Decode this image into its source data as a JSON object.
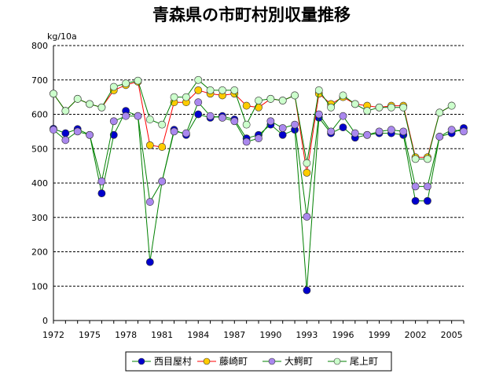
{
  "chart_data": {
    "type": "line",
    "title": "青森県の市町村別収量推移",
    "ylabel": "kg/10a",
    "ylim": [
      0,
      800
    ],
    "yticks": [
      0,
      100,
      200,
      300,
      400,
      500,
      600,
      700,
      800
    ],
    "xlim": [
      1972,
      2006
    ],
    "xticks": [
      1972,
      1975,
      1978,
      1981,
      1984,
      1987,
      1990,
      1993,
      1996,
      1999,
      2002,
      2005
    ],
    "grid": "horizontal-dashed",
    "legend_position": "bottom",
    "x": [
      1972,
      1973,
      1974,
      1975,
      1976,
      1977,
      1978,
      1979,
      1980,
      1981,
      1982,
      1983,
      1984,
      1985,
      1986,
      1987,
      1988,
      1989,
      1990,
      1991,
      1992,
      1993,
      1994,
      1995,
      1996,
      1997,
      1998,
      1999,
      2000,
      2001,
      2002,
      2003,
      2004,
      2005,
      2006
    ],
    "series": [
      {
        "name": "西目屋村",
        "line_color": "#008000",
        "marker_color": "#0000cc",
        "values": [
          558,
          545,
          557,
          540,
          370,
          540,
          610,
          595,
          170,
          405,
          555,
          540,
          600,
          590,
          595,
          585,
          530,
          540,
          570,
          540,
          555,
          88,
          590,
          545,
          562,
          532,
          540,
          545,
          545,
          540,
          348,
          348,
          535,
          545,
          560
        ]
      },
      {
        "name": "藤崎町",
        "line_color": "#ff0000",
        "marker_color": "#ffcc00",
        "values": [
          660,
          610,
          645,
          630,
          620,
          670,
          685,
          695,
          510,
          505,
          635,
          635,
          670,
          660,
          655,
          660,
          625,
          620,
          645,
          640,
          655,
          430,
          660,
          630,
          650,
          630,
          625,
          620,
          625,
          625,
          475,
          475,
          605,
          625,
          null
        ]
      },
      {
        "name": "大鰐町",
        "line_color": "#008000",
        "marker_color": "#aa88ee",
        "values": [
          555,
          525,
          550,
          540,
          405,
          580,
          595,
          595,
          345,
          405,
          550,
          545,
          635,
          595,
          590,
          580,
          520,
          530,
          580,
          560,
          570,
          302,
          600,
          550,
          595,
          545,
          540,
          550,
          555,
          550,
          390,
          390,
          535,
          555,
          550
        ]
      },
      {
        "name": "尾上町",
        "line_color": "#008000",
        "marker_color": "#ccffcc",
        "values": [
          660,
          610,
          645,
          630,
          620,
          680,
          690,
          698,
          585,
          570,
          650,
          650,
          700,
          670,
          670,
          670,
          570,
          640,
          645,
          640,
          655,
          458,
          670,
          620,
          655,
          630,
          610,
          620,
          620,
          620,
          470,
          470,
          605,
          625,
          null
        ]
      }
    ]
  }
}
